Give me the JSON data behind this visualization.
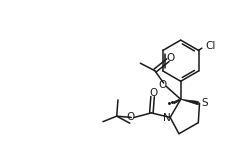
{
  "bg_color": "#ffffff",
  "line_color": "#1a1a1a",
  "line_width": 1.1,
  "figsize": [
    2.51,
    1.54
  ],
  "dpi": 100,
  "xlim": [
    0,
    10
  ],
  "ylim": [
    0,
    6.1
  ]
}
